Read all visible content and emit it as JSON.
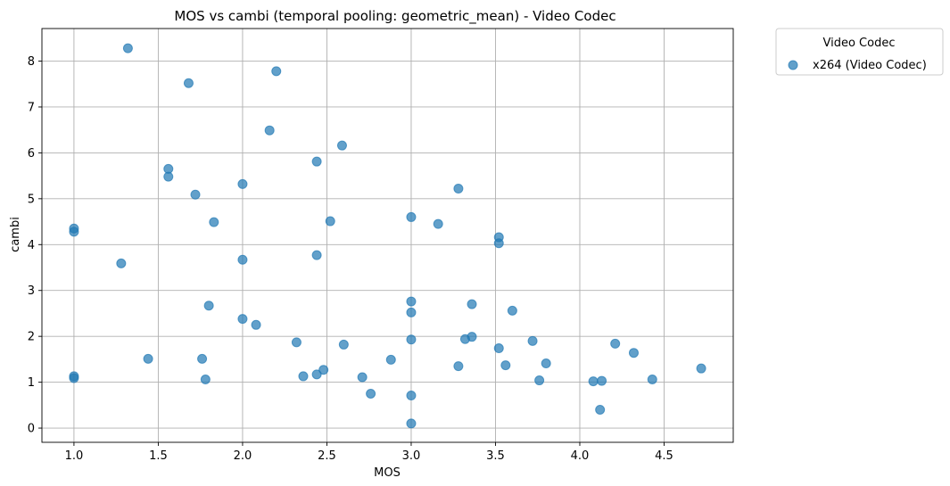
{
  "chart_data": {
    "type": "scatter",
    "title": "MOS vs cambi (temporal pooling: geometric_mean) - Video Codec",
    "xlabel": "MOS",
    "ylabel": "cambi",
    "xlim": [
      0.81,
      4.91
    ],
    "ylim": [
      -0.31,
      8.71
    ],
    "xticks": [
      1.0,
      1.5,
      2.0,
      2.5,
      3.0,
      3.5,
      4.0,
      4.5
    ],
    "xtick_labels": [
      "1.0",
      "1.5",
      "2.0",
      "2.5",
      "3.0",
      "3.5",
      "4.0",
      "4.5"
    ],
    "yticks": [
      0,
      1,
      2,
      3,
      4,
      5,
      6,
      7,
      8
    ],
    "ytick_labels": [
      "0",
      "1",
      "2",
      "3",
      "4",
      "5",
      "6",
      "7",
      "8"
    ],
    "grid": true,
    "legend": {
      "title": "Video Codec",
      "placement": "outside-top-right"
    },
    "series": [
      {
        "name": "x264 (Video Codec)",
        "color": "#1f77b4",
        "x": [
          1.32,
          2.2,
          1.68,
          2.16,
          2.59,
          2.44,
          1.56,
          1.56,
          1.72,
          2.0,
          3.28,
          3.0,
          3.16,
          2.52,
          1.83,
          1.0,
          1.0,
          3.52,
          3.52,
          1.28,
          2.0,
          2.44,
          3.0,
          3.36,
          1.8,
          3.0,
          3.6,
          2.0,
          2.08,
          3.36,
          3.32,
          3.0,
          3.72,
          2.32,
          2.6,
          3.52,
          4.21,
          4.32,
          1.44,
          1.76,
          2.88,
          3.8,
          3.56,
          3.28,
          2.48,
          4.72,
          2.44,
          2.36,
          2.71,
          1.0,
          1.0,
          1.78,
          3.76,
          4.08,
          4.13,
          4.43,
          2.76,
          3.0,
          4.12,
          3.0
        ],
        "y": [
          8.28,
          7.78,
          7.52,
          6.49,
          6.16,
          5.81,
          5.65,
          5.48,
          5.09,
          5.32,
          5.22,
          4.6,
          4.45,
          4.51,
          4.49,
          4.35,
          4.28,
          4.16,
          4.03,
          3.59,
          3.67,
          3.77,
          2.76,
          2.7,
          2.67,
          2.52,
          2.56,
          2.38,
          2.25,
          1.99,
          1.94,
          1.93,
          1.9,
          1.87,
          1.82,
          1.74,
          1.84,
          1.64,
          1.51,
          1.51,
          1.49,
          1.41,
          1.37,
          1.35,
          1.27,
          1.3,
          1.17,
          1.13,
          1.11,
          1.13,
          1.09,
          1.06,
          1.04,
          1.02,
          1.03,
          1.06,
          0.75,
          0.71,
          0.4,
          0.1
        ]
      }
    ]
  }
}
